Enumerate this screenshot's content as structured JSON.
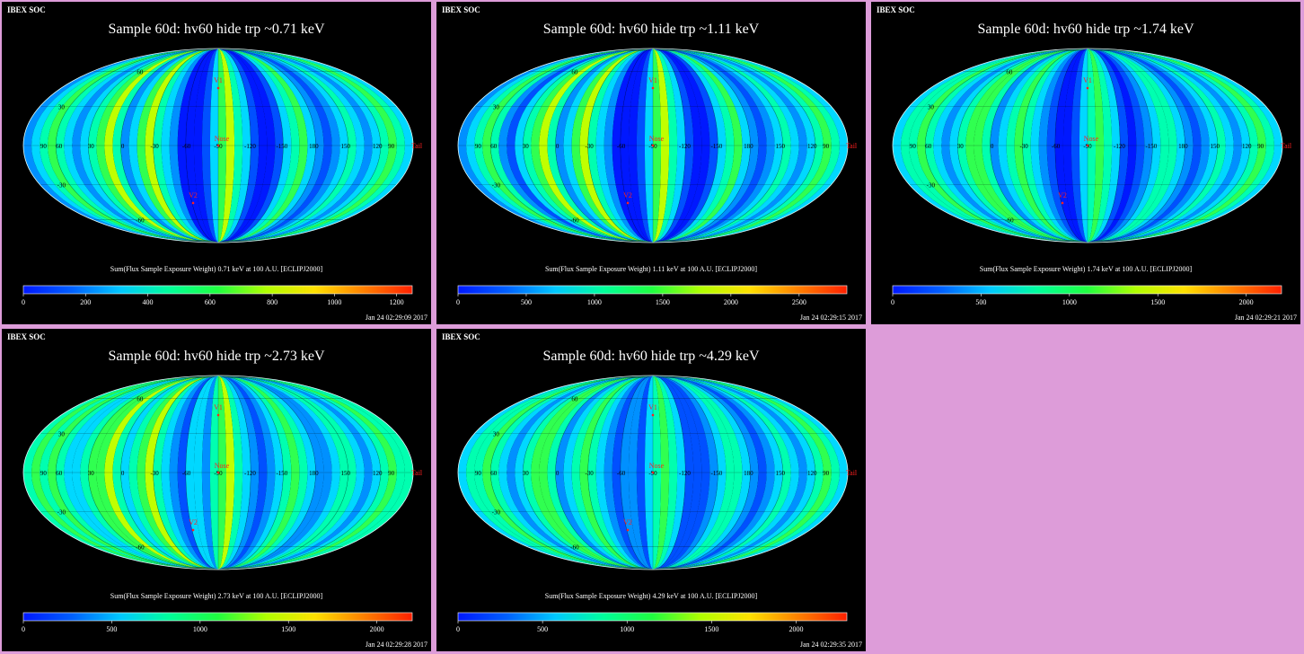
{
  "page": {
    "background": "#dd9cd9",
    "panel_background": "#000000"
  },
  "labels": {
    "nose": "Nose",
    "tail": "Tail",
    "v1": "V1",
    "v2": "V2"
  },
  "map_colors": {
    "frame_text": "#ffffff",
    "marker": "#ff2020",
    "graticule_label": "#000000"
  },
  "colorbar_colors": [
    "#0018ff",
    "#0060ff",
    "#00c8ff",
    "#00ff9a",
    "#20ff40",
    "#b0ff00",
    "#ffe000",
    "#ff8000",
    "#ff2000"
  ],
  "chart_data": [
    {
      "type": "heatmap",
      "projection": "mollweide",
      "header": "IBEX SOC",
      "title": "Sample 60d: hv60 hide trp ~0.71 keV",
      "colorbar_label": "Sum(Flux Sample Exposure Weight) 0.71 keV at 100 A.U. [ECLIPJ2000]",
      "colorbar_range": [
        0,
        1250
      ],
      "colorbar_ticks": [
        "0",
        "200",
        "400",
        "600",
        "800",
        "1000",
        "1200"
      ],
      "colorbar_tick_values": [
        0,
        200,
        400,
        600,
        800,
        1000,
        1200
      ],
      "timestamp": "Jan 24 02:29:09 2017",
      "longitude_labels": [
        "90",
        "60",
        "30",
        "0",
        "-30",
        "-60",
        "-90",
        "-120",
        "-150",
        "180",
        "150",
        "120",
        "90"
      ],
      "latitude_labels": [
        "60",
        "30",
        "-30",
        "-60"
      ],
      "strip_levels": [
        2,
        3,
        4,
        5,
        4,
        3,
        2,
        3,
        4,
        5,
        6,
        4,
        2,
        3,
        5,
        6,
        4,
        3,
        2,
        0,
        0,
        0,
        1,
        3,
        5,
        6,
        4,
        3,
        1,
        0,
        0,
        1,
        3,
        4,
        5,
        3,
        2,
        1,
        2,
        3,
        4,
        3,
        2,
        3,
        4,
        5,
        4,
        3
      ]
    },
    {
      "type": "heatmap",
      "projection": "mollweide",
      "header": "IBEX SOC",
      "title": "Sample 60d: hv60 hide trp ~1.11 keV",
      "colorbar_label": "Sum(Flux Sample Exposure Weight) 1.11 keV at 100 A.U. [ECLIPJ2000]",
      "colorbar_range": [
        0,
        2850
      ],
      "colorbar_ticks": [
        "0",
        "500",
        "1000",
        "1500",
        "2000",
        "2500"
      ],
      "colorbar_tick_values": [
        0,
        500,
        1000,
        1500,
        2000,
        2500
      ],
      "timestamp": "Jan 24 02:29:15 2017",
      "longitude_labels": [
        "90",
        "60",
        "30",
        "0",
        "-30",
        "-60",
        "-90",
        "-120",
        "-150",
        "180",
        "150",
        "120",
        "90"
      ],
      "latitude_labels": [
        "60",
        "30",
        "-30",
        "-60"
      ],
      "strip_levels": [
        2,
        3,
        4,
        5,
        4,
        2,
        1,
        3,
        4,
        5,
        6,
        4,
        2,
        3,
        5,
        6,
        4,
        3,
        2,
        0,
        0,
        0,
        1,
        3,
        5,
        6,
        4,
        3,
        1,
        0,
        0,
        1,
        3,
        4,
        5,
        3,
        2,
        1,
        2,
        3,
        4,
        3,
        2,
        3,
        4,
        5,
        4,
        3
      ]
    },
    {
      "type": "heatmap",
      "projection": "mollweide",
      "header": "IBEX SOC",
      "title": "Sample 60d: hv60 hide trp ~1.74 keV",
      "colorbar_label": "Sum(Flux Sample Exposure Weight) 1.74 keV at 100 A.U. [ECLIPJ2000]",
      "colorbar_range": [
        0,
        2200
      ],
      "colorbar_ticks": [
        "0",
        "500",
        "1000",
        "1500",
        "2000"
      ],
      "colorbar_tick_values": [
        0,
        500,
        1000,
        1500,
        2000
      ],
      "timestamp": "Jan 24 02:29:21 2017",
      "longitude_labels": [
        "90",
        "60",
        "30",
        "0",
        "-30",
        "-60",
        "-90",
        "-120",
        "-150",
        "180",
        "150",
        "120",
        "90"
      ],
      "latitude_labels": [
        "60",
        "30",
        "-30",
        "-60"
      ],
      "strip_levels": [
        3,
        4,
        4,
        5,
        4,
        3,
        2,
        3,
        4,
        5,
        5,
        4,
        2,
        3,
        4,
        5,
        4,
        3,
        2,
        1,
        0,
        0,
        1,
        3,
        4,
        5,
        4,
        3,
        1,
        0,
        1,
        2,
        3,
        4,
        4,
        3,
        2,
        1,
        2,
        3,
        4,
        3,
        2,
        3,
        4,
        5,
        4,
        3
      ]
    },
    {
      "type": "heatmap",
      "projection": "mollweide",
      "header": "IBEX SOC",
      "title": "Sample 60d: hv60 hide trp ~2.73 keV",
      "colorbar_label": "Sum(Flux Sample Exposure Weight) 2.73 keV at 100 A.U. [ECLIPJ2000]",
      "colorbar_range": [
        0,
        2200
      ],
      "colorbar_ticks": [
        "0",
        "500",
        "1000",
        "1500",
        "2000"
      ],
      "colorbar_tick_values": [
        0,
        500,
        1000,
        1500,
        2000
      ],
      "timestamp": "Jan 24 02:29:28 2017",
      "longitude_labels": [
        "90",
        "60",
        "30",
        "0",
        "-30",
        "-60",
        "-90",
        "-120",
        "-150",
        "180",
        "150",
        "120",
        "90"
      ],
      "latitude_labels": [
        "60",
        "30",
        "-30",
        "-60"
      ],
      "strip_levels": [
        4,
        5,
        4,
        5,
        4,
        3,
        3,
        4,
        5,
        5,
        6,
        4,
        3,
        4,
        5,
        6,
        4,
        3,
        2,
        1,
        3,
        3,
        2,
        4,
        5,
        6,
        4,
        3,
        2,
        1,
        2,
        3,
        4,
        5,
        4,
        3,
        2,
        2,
        3,
        4,
        4,
        3,
        2,
        3,
        4,
        5,
        4,
        4
      ]
    },
    {
      "type": "heatmap",
      "projection": "mollweide",
      "header": "IBEX SOC",
      "title": "Sample 60d: hv60 hide trp ~4.29 keV",
      "colorbar_label": "Sum(Flux Sample Exposure Weight) 4.29 keV at 100 A.U. [ECLIPJ2000]",
      "colorbar_range": [
        0,
        2300
      ],
      "colorbar_ticks": [
        "0",
        "500",
        "1000",
        "1500",
        "2000"
      ],
      "colorbar_tick_values": [
        0,
        500,
        1000,
        1500,
        2000
      ],
      "timestamp": "Jan 24 02:29:35 2017",
      "longitude_labels": [
        "90",
        "60",
        "30",
        "0",
        "-30",
        "-60",
        "-90",
        "-120",
        "-150",
        "180",
        "150",
        "120",
        "90"
      ],
      "latitude_labels": [
        "60",
        "30",
        "-30",
        "-60"
      ],
      "strip_levels": [
        3,
        4,
        4,
        5,
        4,
        3,
        2,
        3,
        4,
        5,
        5,
        4,
        2,
        3,
        4,
        5,
        4,
        3,
        2,
        1,
        2,
        2,
        1,
        3,
        4,
        5,
        4,
        3,
        1,
        1,
        1,
        2,
        3,
        4,
        4,
        3,
        2,
        1,
        2,
        3,
        4,
        3,
        2,
        3,
        4,
        5,
        4,
        3
      ]
    }
  ]
}
